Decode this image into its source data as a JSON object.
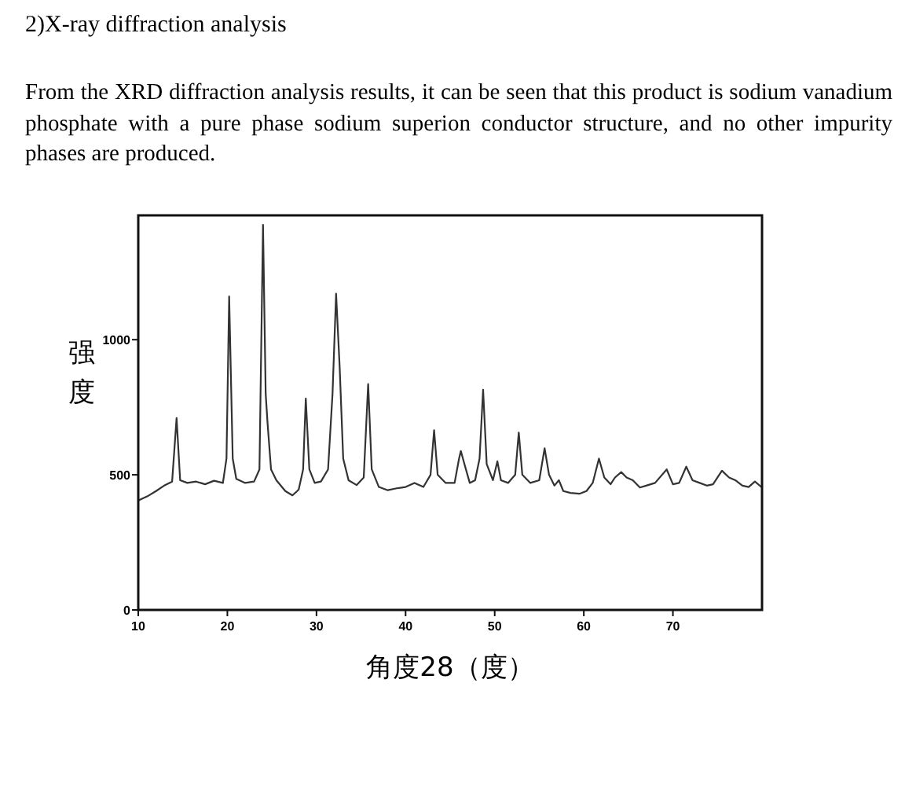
{
  "chart_data": {
    "type": "line",
    "title": "2)X-ray diffraction analysis",
    "subtitle": "From the XRD diffraction analysis results, it can be seen that this product is sodium vanadium phosphate with a pure phase sodium superion conductor structure, and no other impurity phases are produced.",
    "xlabel": "角度28（度）",
    "ylabel": "强度",
    "xlim": [
      10,
      80
    ],
    "ylim": [
      0,
      1460
    ],
    "xticks": [
      10,
      20,
      30,
      40,
      50,
      60,
      70
    ],
    "yticks": [
      0,
      500,
      1000
    ],
    "grid": false,
    "series": [
      {
        "color": "#333333",
        "x": [
          10,
          11,
          12,
          13,
          13.8,
          14.3,
          14.7,
          15.5,
          16.5,
          17.5,
          18.5,
          19.5,
          19.9,
          20.2,
          20.6,
          21,
          22,
          23,
          23.6,
          24,
          24.3,
          24.5,
          24.9,
          25.5,
          26.5,
          27.3,
          28,
          28.5,
          28.8,
          29.2,
          29.8,
          30.5,
          31.3,
          31.8,
          32.2,
          32.6,
          33,
          33.6,
          34.5,
          35.3,
          35.8,
          36.2,
          37,
          38,
          39,
          40,
          41,
          42,
          42.8,
          43.2,
          43.6,
          44.5,
          45.5,
          46,
          46.2,
          46.6,
          47.2,
          47.8,
          48.3,
          48.7,
          49.1,
          49.8,
          50.3,
          50.7,
          51.5,
          52.3,
          52.7,
          53.1,
          54,
          55,
          55.6,
          56.1,
          56.7,
          57.2,
          57.7,
          58.5,
          59.5,
          60.3,
          61,
          61.7,
          62.3,
          63,
          63.5,
          64.2,
          64.8,
          65.5,
          66.3,
          67,
          68,
          69.3,
          70,
          70.7,
          71.5,
          72.2,
          73,
          73.8,
          74.5,
          75.5,
          76.3,
          77,
          77.8,
          78.5,
          79.2,
          80
        ],
        "values": [
          405,
          420,
          440,
          462,
          475,
          710,
          480,
          470,
          475,
          465,
          478,
          470,
          560,
          1160,
          560,
          485,
          470,
          475,
          520,
          1425,
          800,
          695,
          520,
          480,
          440,
          424,
          445,
          520,
          782,
          520,
          470,
          475,
          520,
          800,
          1170,
          900,
          560,
          480,
          462,
          490,
          836,
          520,
          455,
          443,
          450,
          455,
          470,
          455,
          500,
          665,
          500,
          470,
          470,
          560,
          588,
          540,
          470,
          480,
          560,
          815,
          540,
          480,
          550,
          480,
          470,
          500,
          656,
          500,
          470,
          480,
          598,
          500,
          460,
          480,
          440,
          433,
          430,
          440,
          470,
          560,
          490,
          465,
          490,
          510,
          490,
          480,
          453,
          460,
          470,
          520,
          465,
          470,
          530,
          480,
          470,
          460,
          465,
          515,
          490,
          480,
          460,
          455,
          475,
          453
        ]
      }
    ]
  }
}
